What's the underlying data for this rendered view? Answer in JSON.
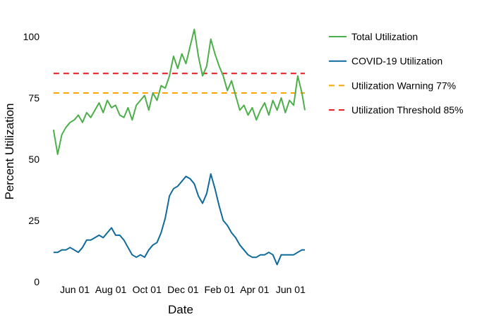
{
  "chart_data": {
    "type": "line",
    "title": "",
    "xlabel": "Date",
    "ylabel": "Percent Utilization",
    "ylim": [
      0,
      105
    ],
    "yticks": [
      "0",
      "25",
      "50",
      "75",
      "100"
    ],
    "xticks": [
      {
        "date": "2020-06-01",
        "label": "Jun 01"
      },
      {
        "date": "2020-08-01",
        "label": "Aug 01"
      },
      {
        "date": "2020-10-01",
        "label": "Oct 01"
      },
      {
        "date": "2020-12-01",
        "label": "Dec 01"
      },
      {
        "date": "2021-02-01",
        "label": "Feb 01"
      },
      {
        "date": "2021-04-01",
        "label": "Apr 01"
      },
      {
        "date": "2021-06-01",
        "label": "Jun 01"
      }
    ],
    "grid": false,
    "legend_position": "right",
    "x": [
      "2020-04-26",
      "2020-05-03",
      "2020-05-10",
      "2020-05-17",
      "2020-05-24",
      "2020-05-31",
      "2020-06-07",
      "2020-06-14",
      "2020-06-21",
      "2020-06-28",
      "2020-07-05",
      "2020-07-12",
      "2020-07-19",
      "2020-07-26",
      "2020-08-02",
      "2020-08-09",
      "2020-08-16",
      "2020-08-23",
      "2020-08-30",
      "2020-09-06",
      "2020-09-13",
      "2020-09-20",
      "2020-09-27",
      "2020-10-04",
      "2020-10-11",
      "2020-10-18",
      "2020-10-25",
      "2020-11-01",
      "2020-11-08",
      "2020-11-15",
      "2020-11-22",
      "2020-11-29",
      "2020-12-06",
      "2020-12-13",
      "2020-12-20",
      "2020-12-27",
      "2021-01-03",
      "2021-01-10",
      "2021-01-17",
      "2021-01-24",
      "2021-01-31",
      "2021-02-07",
      "2021-02-14",
      "2021-02-21",
      "2021-02-28",
      "2021-03-07",
      "2021-03-14",
      "2021-03-21",
      "2021-03-28",
      "2021-04-04",
      "2021-04-11",
      "2021-04-18",
      "2021-04-25",
      "2021-05-02",
      "2021-05-09",
      "2021-05-16",
      "2021-05-23",
      "2021-05-30",
      "2021-06-06",
      "2021-06-13",
      "2021-06-20",
      "2021-06-25"
    ],
    "series": [
      {
        "name": "Total Utilization",
        "color": "#4daf4a",
        "style": "solid",
        "values": [
          62,
          52,
          60,
          63,
          65,
          66,
          68,
          65,
          69,
          67,
          70,
          73,
          69,
          74,
          71,
          72,
          68,
          67,
          71,
          66,
          72,
          74,
          76,
          70,
          77,
          74,
          80,
          79,
          84,
          92,
          87,
          93,
          89,
          96,
          103,
          92,
          84,
          88,
          99,
          93,
          88,
          84,
          78,
          82,
          76,
          70,
          72,
          68,
          71,
          66,
          70,
          73,
          68,
          74,
          70,
          75,
          69,
          74,
          72,
          84,
          77,
          70
        ]
      },
      {
        "name": "COVID-19 Utilization",
        "color": "#0f6a9c",
        "style": "solid",
        "values": [
          12,
          12,
          13,
          13,
          14,
          13,
          12,
          14,
          17,
          17,
          18,
          19,
          18,
          20,
          22,
          19,
          19,
          17,
          14,
          11,
          10,
          11,
          10,
          13,
          15,
          16,
          20,
          26,
          35,
          38,
          39,
          41,
          43,
          42,
          40,
          35,
          32,
          36,
          44,
          38,
          31,
          25,
          23,
          20,
          18,
          15,
          13,
          11,
          10,
          10,
          11,
          11,
          12,
          11,
          7,
          11,
          11,
          11,
          11,
          12,
          13,
          13
        ]
      }
    ],
    "reference_lines": [
      {
        "name": "Utilization Warning 77%",
        "value": 77,
        "color": "#ffa500",
        "style": "dashed"
      },
      {
        "name": "Utilization Threshold 85%",
        "value": 85,
        "color": "#e41a1c",
        "style": "dashed"
      }
    ]
  }
}
